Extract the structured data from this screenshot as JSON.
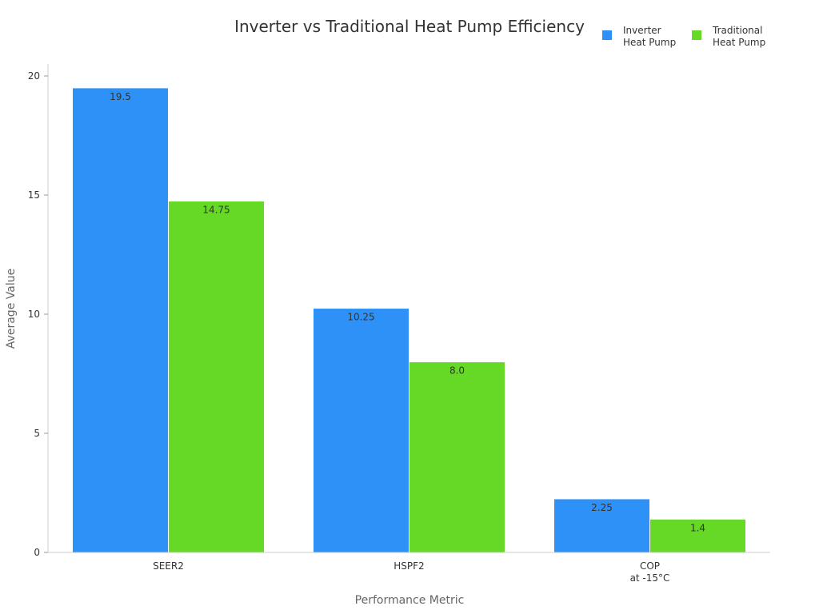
{
  "chart_data": {
    "type": "bar",
    "title": "Inverter vs Traditional Heat Pump Efficiency",
    "xlabel": "Performance Metric",
    "ylabel": "Average Value",
    "categories": [
      [
        "SEER2"
      ],
      [
        "HSPF2"
      ],
      [
        "COP",
        "at -15°C"
      ]
    ],
    "series": [
      {
        "name": [
          "Inverter",
          "Heat Pump"
        ],
        "color": "#2e91f8",
        "values": [
          19.5,
          10.25,
          2.25
        ],
        "labels": [
          "19.5",
          "10.25",
          "2.25"
        ]
      },
      {
        "name": [
          "Traditional",
          "Heat Pump"
        ],
        "color": "#66d926",
        "values": [
          14.75,
          8.0,
          1.4
        ],
        "labels": [
          "14.75",
          "8.0",
          "1.4"
        ]
      }
    ],
    "ylim": [
      0,
      20
    ],
    "yticks": [
      0,
      5,
      10,
      15,
      20
    ],
    "grid": false,
    "legend": "top-right"
  }
}
